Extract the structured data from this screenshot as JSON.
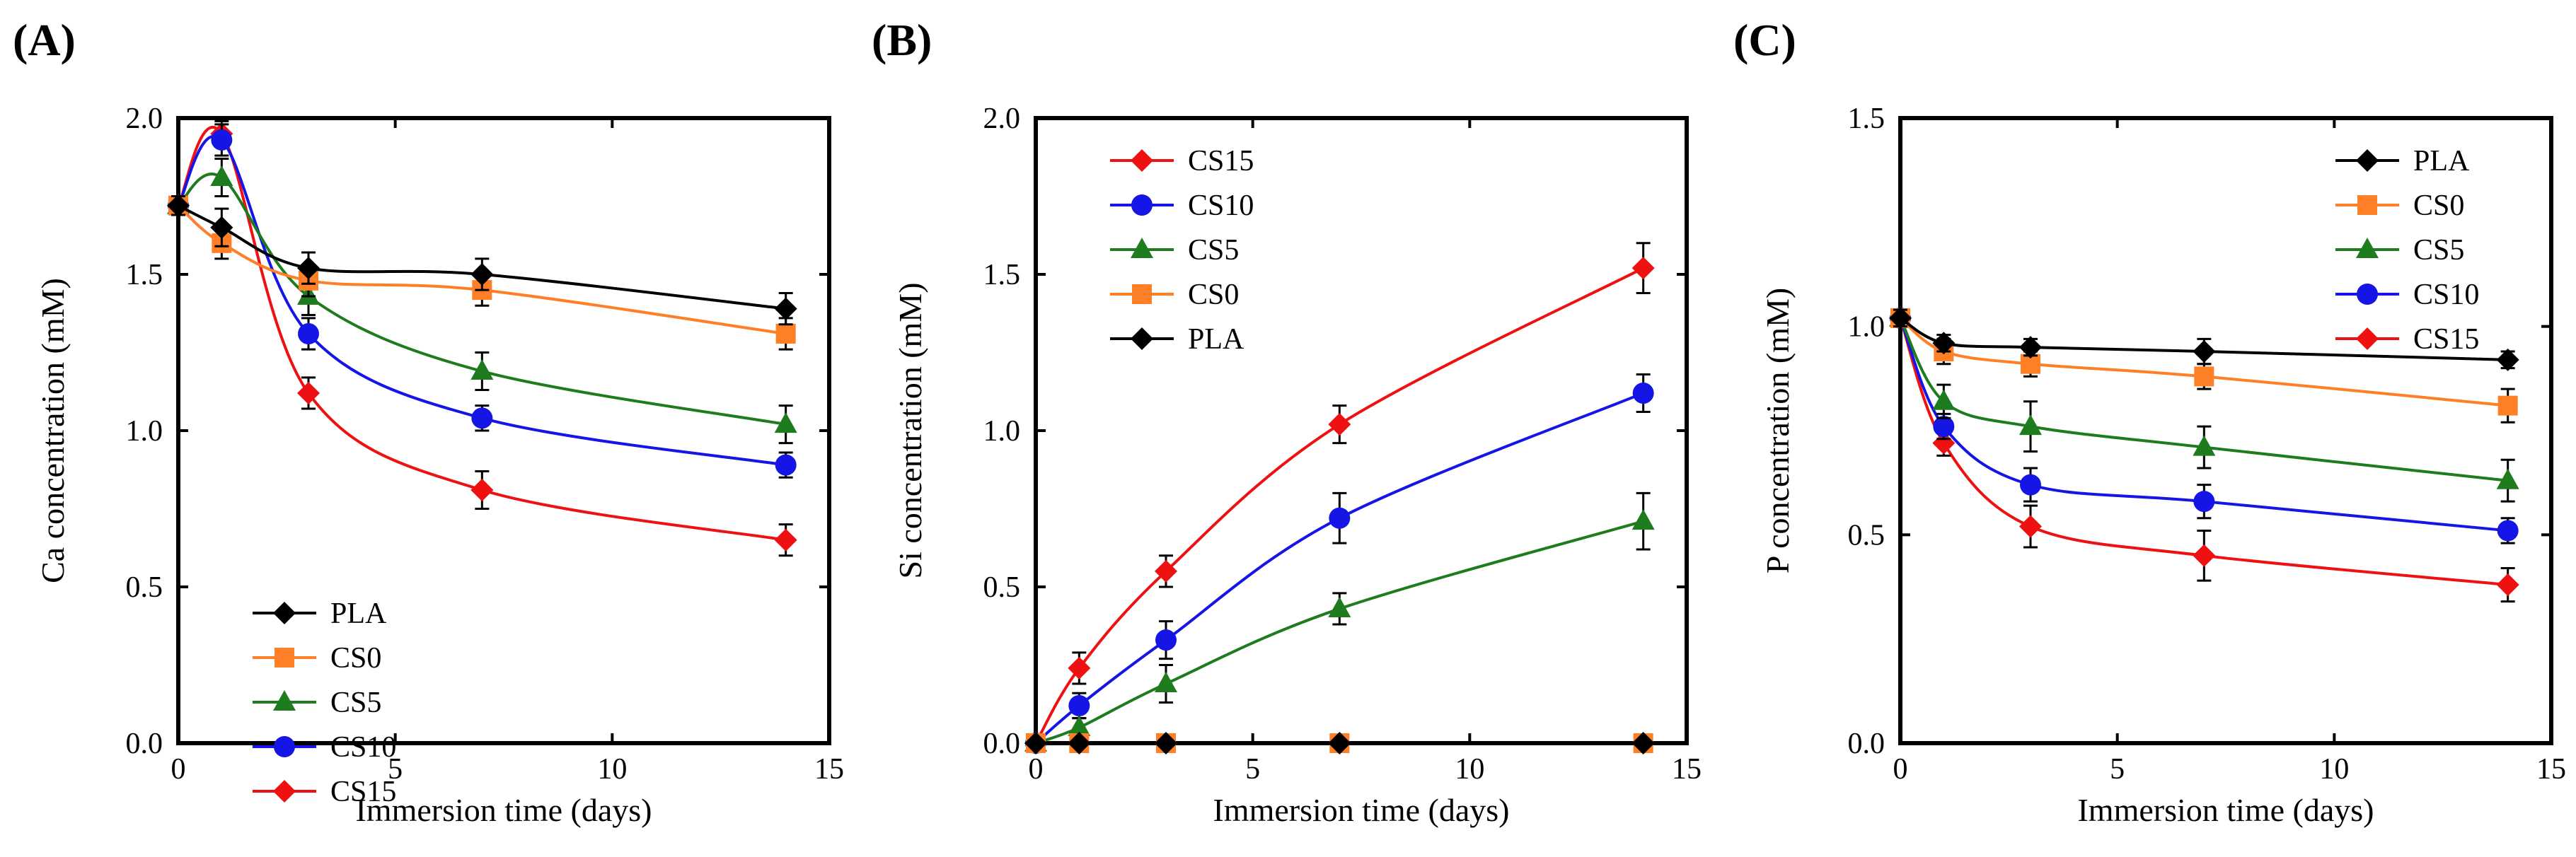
{
  "figure": {
    "panels": [
      "(A)",
      "(B)",
      "(C)"
    ]
  },
  "colors": {
    "PLA": "#000000",
    "CS0": "#FF7F27",
    "CS5": "#1E7B1E",
    "CS10": "#1515E6",
    "CS15": "#EE1111"
  },
  "chart_data": [
    {
      "type": "line",
      "panel": "(A)",
      "title": "",
      "xlabel": "Immersion time (days)",
      "ylabel": "Ca concentration (mM)",
      "xlim": [
        0,
        15
      ],
      "ylim": [
        0,
        2.0
      ],
      "xticks": [
        "0",
        "5",
        "10",
        "15"
      ],
      "yticks": [
        "0.0",
        "0.5",
        "1.0",
        "1.5",
        "2.0"
      ],
      "grid": false,
      "legend_position": "bottom-left",
      "legend_order": [
        "PLA",
        "CS0",
        "CS5",
        "CS10",
        "CS15"
      ],
      "x": [
        0,
        1,
        3,
        7,
        14
      ],
      "series": [
        {
          "name": "PLA",
          "marker": "diamond",
          "values": [
            1.72,
            1.65,
            1.52,
            1.5,
            1.39
          ],
          "errors": [
            0.03,
            0.06,
            0.05,
            0.05,
            0.05
          ]
        },
        {
          "name": "CS0",
          "marker": "square",
          "values": [
            1.72,
            1.6,
            1.48,
            1.45,
            1.31
          ],
          "errors": [
            0.03,
            0.05,
            0.05,
            0.05,
            0.05
          ]
        },
        {
          "name": "CS5",
          "marker": "triangle",
          "values": [
            1.72,
            1.81,
            1.43,
            1.19,
            1.02
          ],
          "errors": [
            0.03,
            0.06,
            0.06,
            0.06,
            0.06
          ]
        },
        {
          "name": "CS10",
          "marker": "circle",
          "values": [
            1.72,
            1.93,
            1.31,
            1.04,
            0.89
          ],
          "errors": [
            0.03,
            0.05,
            0.05,
            0.04,
            0.04
          ]
        },
        {
          "name": "CS15",
          "marker": "diamond",
          "values": [
            1.72,
            1.95,
            1.12,
            0.81,
            0.65
          ],
          "errors": [
            0.03,
            0.04,
            0.05,
            0.06,
            0.05
          ]
        }
      ]
    },
    {
      "type": "line",
      "panel": "(B)",
      "title": "",
      "xlabel": "Immersion time (days)",
      "ylabel": "Si concentration (mM)",
      "xlim": [
        0,
        15
      ],
      "ylim": [
        0,
        2.0
      ],
      "xticks": [
        "0",
        "5",
        "10",
        "15"
      ],
      "yticks": [
        "0.0",
        "0.5",
        "1.0",
        "1.5",
        "2.0"
      ],
      "grid": false,
      "legend_position": "top-left",
      "legend_order": [
        "CS15",
        "CS10",
        "CS5",
        "CS0",
        "PLA"
      ],
      "x": [
        0,
        1,
        3,
        7,
        14
      ],
      "series": [
        {
          "name": "PLA",
          "marker": "diamond",
          "values": [
            0,
            0,
            0,
            0,
            0
          ],
          "errors": [
            0,
            0,
            0,
            0,
            0
          ]
        },
        {
          "name": "CS0",
          "marker": "square",
          "values": [
            0,
            0,
            0,
            0,
            0
          ],
          "errors": [
            0,
            0,
            0,
            0,
            0
          ]
        },
        {
          "name": "CS5",
          "marker": "triangle",
          "values": [
            0,
            0.05,
            0.19,
            0.43,
            0.71
          ],
          "errors": [
            0,
            0.03,
            0.06,
            0.05,
            0.09
          ]
        },
        {
          "name": "CS10",
          "marker": "circle",
          "values": [
            0,
            0.12,
            0.33,
            0.72,
            1.12
          ],
          "errors": [
            0,
            0.04,
            0.06,
            0.08,
            0.06
          ]
        },
        {
          "name": "CS15",
          "marker": "diamond",
          "values": [
            0,
            0.24,
            0.55,
            1.02,
            1.52
          ],
          "errors": [
            0,
            0.05,
            0.05,
            0.06,
            0.08
          ]
        }
      ]
    },
    {
      "type": "line",
      "panel": "(C)",
      "title": "",
      "xlabel": "Immersion time (days)",
      "ylabel": "P concentration (mM)",
      "xlim": [
        0,
        15
      ],
      "ylim": [
        0,
        1.5
      ],
      "xticks": [
        "0",
        "5",
        "10",
        "15"
      ],
      "yticks": [
        "0.0",
        "0.5",
        "1.0",
        "1.5"
      ],
      "grid": false,
      "legend_position": "top-right",
      "legend_order": [
        "PLA",
        "CS0",
        "CS5",
        "CS10",
        "CS15"
      ],
      "x": [
        0,
        1,
        3,
        7,
        14
      ],
      "series": [
        {
          "name": "PLA",
          "marker": "diamond",
          "values": [
            1.02,
            0.96,
            0.95,
            0.94,
            0.92
          ],
          "errors": [
            0.02,
            0.02,
            0.02,
            0.03,
            0.02
          ]
        },
        {
          "name": "CS0",
          "marker": "square",
          "values": [
            1.02,
            0.94,
            0.91,
            0.88,
            0.81
          ],
          "errors": [
            0.02,
            0.03,
            0.03,
            0.03,
            0.04
          ]
        },
        {
          "name": "CS5",
          "marker": "triangle",
          "values": [
            1.02,
            0.82,
            0.76,
            0.71,
            0.63
          ],
          "errors": [
            0.02,
            0.04,
            0.06,
            0.05,
            0.05
          ]
        },
        {
          "name": "CS10",
          "marker": "circle",
          "values": [
            1.02,
            0.76,
            0.62,
            0.58,
            0.51
          ],
          "errors": [
            0.02,
            0.03,
            0.04,
            0.04,
            0.03
          ]
        },
        {
          "name": "CS15",
          "marker": "diamond",
          "values": [
            1.02,
            0.72,
            0.52,
            0.45,
            0.38
          ],
          "errors": [
            0.02,
            0.03,
            0.05,
            0.06,
            0.04
          ]
        }
      ]
    }
  ]
}
